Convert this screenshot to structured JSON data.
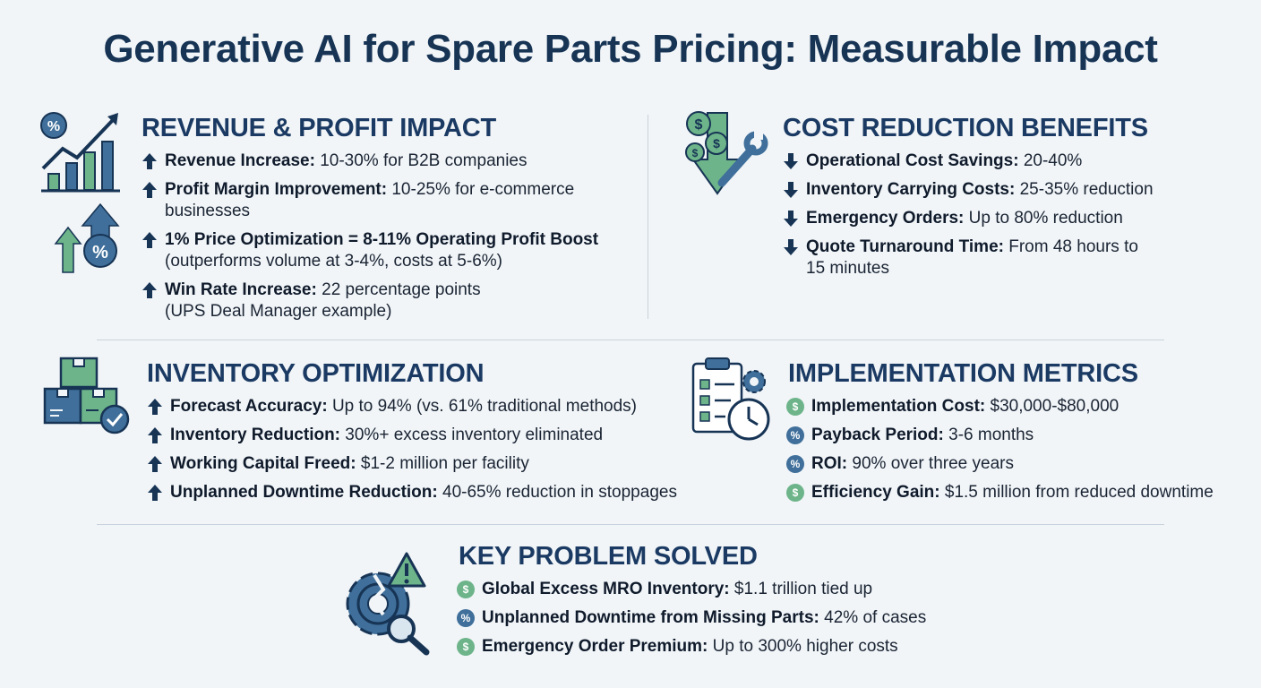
{
  "title": "Generative AI for Spare Parts Pricing: Measurable Impact",
  "colors": {
    "navy": "#173455",
    "blue": "#3f6f9a",
    "green": "#6db48a",
    "background": "#f1f5f8"
  },
  "sections": {
    "revenue": {
      "heading": "REVENUE & PROFIT IMPACT",
      "icon": "growth-chart-icon",
      "items": [
        {
          "label": "Revenue Increase:",
          "text": " 10-30% for B2B companies"
        },
        {
          "label": "Profit Margin Improvement:",
          "text": " 10-25% for e-commerce",
          "cont": "businesses"
        },
        {
          "label": "1% Price Optimization = 8-11% Operating Profit Boost",
          "text": "",
          "cont": "(outperforms volume at 3-4%, costs at 5-6%)"
        },
        {
          "label": "Win Rate Increase:",
          "text": " 22 percentage points",
          "cont": "(UPS Deal Manager example)"
        }
      ]
    },
    "cost": {
      "heading": "COST REDUCTION BENEFITS",
      "icon": "cost-down-icon",
      "items": [
        {
          "label": "Operational Cost Savings:",
          "text": " 20-40%"
        },
        {
          "label": "Inventory Carrying Costs:",
          "text": " 25-35% reduction"
        },
        {
          "label": "Emergency Orders:",
          "text": " Up to 80% reduction"
        },
        {
          "label": "Quote Turnaround Time:",
          "text": " From 48 hours to",
          "cont": "15 minutes"
        }
      ]
    },
    "inventory": {
      "heading": "INVENTORY OPTIMIZATION",
      "icon": "boxes-icon",
      "items": [
        {
          "label": "Forecast Accuracy:",
          "text": " Up to 94% (vs. 61% traditional methods)"
        },
        {
          "label": "Inventory Reduction:",
          "text": " 30%+ excess inventory eliminated"
        },
        {
          "label": "Working Capital Freed:",
          "text": " $1-2 million per facility"
        },
        {
          "label": "Unplanned Downtime Reduction:",
          "text": " 40-65% reduction in stoppages"
        }
      ]
    },
    "implementation": {
      "heading": "IMPLEMENTATION METRICS",
      "icon": "clipboard-clock-icon",
      "items": [
        {
          "label": "Implementation Cost:",
          "text": " $30,000-$80,000",
          "coin": "$",
          "coin_color": "green"
        },
        {
          "label": "Payback Period:",
          "text": " 3-6 months",
          "coin": "%",
          "coin_color": "blue"
        },
        {
          "label": "ROI:",
          "text": " 90% over three years",
          "coin": "%",
          "coin_color": "blue"
        },
        {
          "label": "Efficiency Gain:",
          "text": " $1.5 million from reduced downtime",
          "coin": "$",
          "coin_color": "green"
        }
      ]
    },
    "problem": {
      "heading": "KEY PROBLEM SOLVED",
      "icon": "broken-gear-warning-icon",
      "items": [
        {
          "label": "Global Excess MRO Inventory:",
          "text": " $1.1 trillion tied up",
          "coin": "$",
          "coin_color": "green"
        },
        {
          "label": "Unplanned Downtime from Missing Parts:",
          "text": " 42% of cases",
          "coin": "%",
          "coin_color": "blue"
        },
        {
          "label": "Emergency Order Premium:",
          "text": " Up to 300% higher costs",
          "coin": "$",
          "coin_color": "green"
        }
      ]
    }
  }
}
